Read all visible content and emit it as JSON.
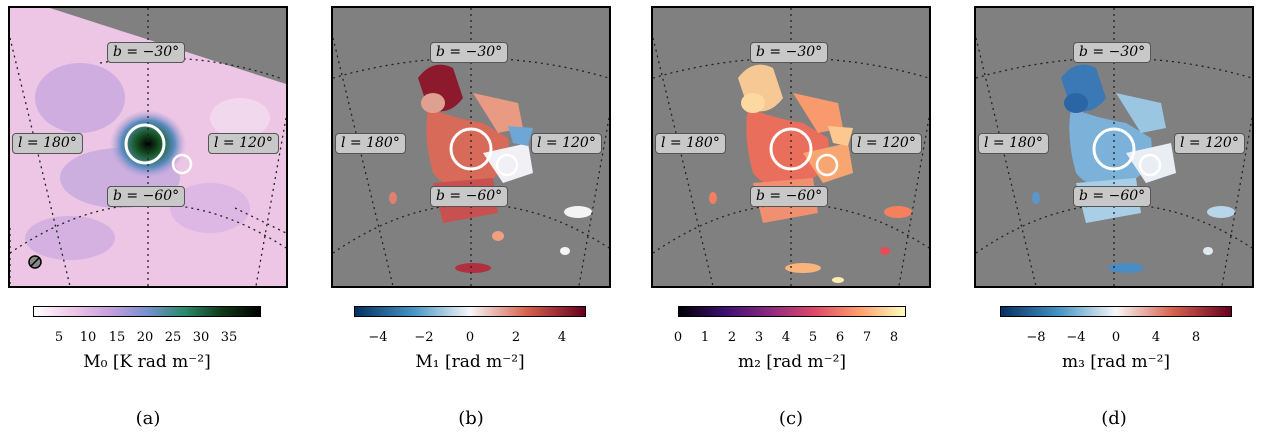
{
  "panels": [
    {
      "caption": "(a)",
      "labels": {
        "b_top": "b = −30°",
        "l_left": "l = 180°",
        "l_right": "l = 120°",
        "b_bottom": "b = −60°"
      },
      "colorbar": {
        "ticks": [
          "5",
          "10",
          "15",
          "20",
          "25",
          "30",
          "35"
        ],
        "label": "M₀ [K rad m⁻²]",
        "colormap": [
          "#ffffff",
          "#f0c8e8",
          "#c8a0dc",
          "#7890d0",
          "#2a8a6a",
          "#103818",
          "#000000"
        ]
      }
    },
    {
      "caption": "(b)",
      "labels": {
        "b_top": "b = −30°",
        "l_left": "l = 180°",
        "l_right": "l = 120°",
        "b_bottom": "b = −60°"
      },
      "colorbar": {
        "ticks": [
          "−4",
          "−2",
          "0",
          "2",
          "4"
        ],
        "label": "M₁ [rad m⁻²]",
        "colormap": [
          "#053061",
          "#4393c3",
          "#f7f7f7",
          "#d6604d",
          "#67001f"
        ]
      }
    },
    {
      "caption": "(c)",
      "labels": {
        "b_top": "b = −30°",
        "l_left": "l = 180°",
        "l_right": "l = 120°",
        "b_bottom": "b = −60°"
      },
      "colorbar": {
        "ticks": [
          "0",
          "1",
          "2",
          "3",
          "4",
          "5",
          "6",
          "7",
          "8"
        ],
        "label": "m₂ [rad m⁻²]",
        "colormap": [
          "#000004",
          "#3b0f70",
          "#8c2981",
          "#de4968",
          "#fe9f6d",
          "#fcfdbf"
        ]
      }
    },
    {
      "caption": "(d)",
      "labels": {
        "b_top": "b = −30°",
        "l_left": "l = 180°",
        "l_right": "l = 120°",
        "b_bottom": "b = −60°"
      },
      "colorbar": {
        "ticks": [
          "−8",
          "−4",
          "0",
          "4",
          "8"
        ],
        "label": "m₃ [rad m⁻²]",
        "colormap": [
          "#053061",
          "#4393c3",
          "#f7f7f7",
          "#d6604d",
          "#67001f"
        ]
      }
    }
  ]
}
